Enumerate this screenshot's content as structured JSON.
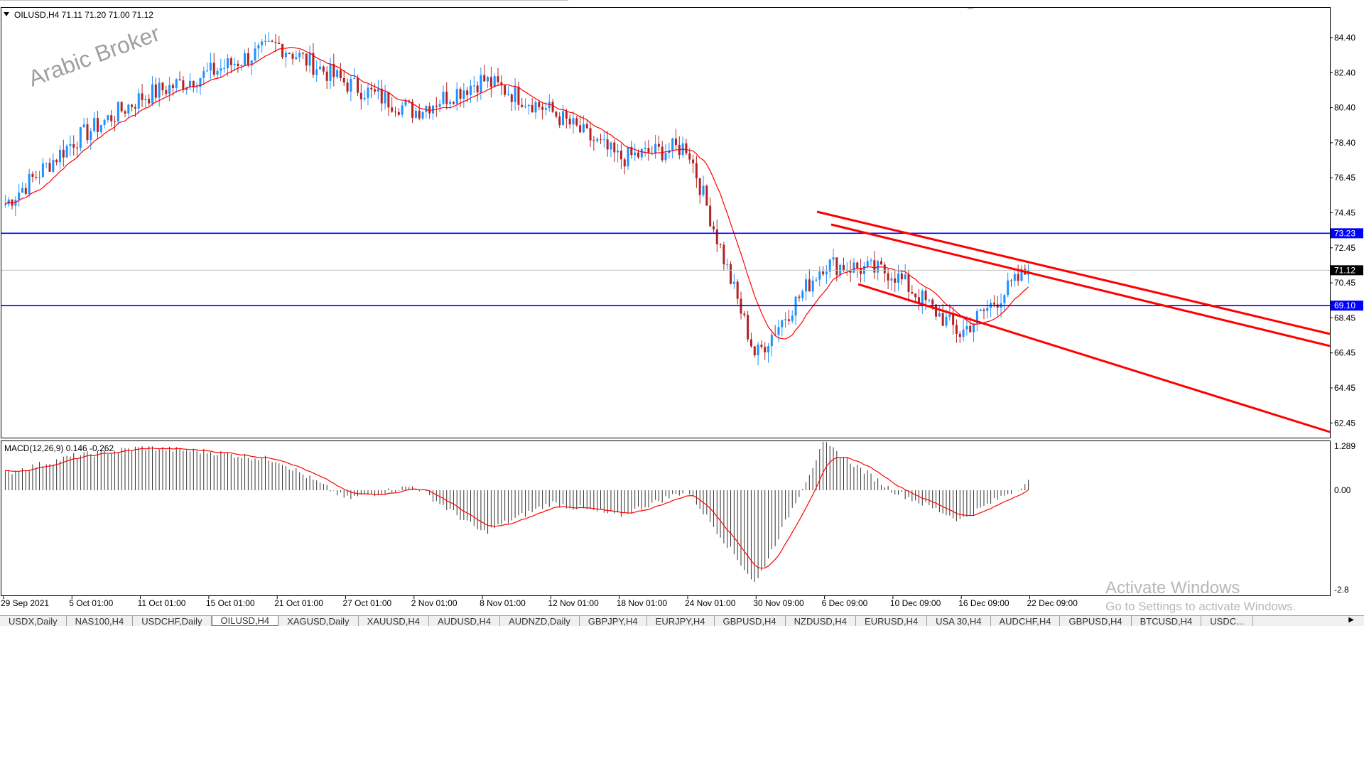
{
  "chart": {
    "header": "OILUSD,H4  71.11 71.20 71.00 71.12",
    "watermark": "Arabic Broker",
    "price_axis": [
      "84.40",
      "82.40",
      "80.40",
      "78.40",
      "76.45",
      "74.45",
      "72.45",
      "70.45",
      "68.45",
      "66.45",
      "64.45",
      "62.45"
    ],
    "hlines": [
      {
        "price": 73.23,
        "label": "73.23",
        "color": "#0000ff"
      },
      {
        "price": 69.1,
        "label": "69.10",
        "color": "#0000ff"
      }
    ],
    "current_price": {
      "price": 71.12,
      "label": "71.12"
    },
    "time_axis": [
      "29 Sep 2021",
      "5 Oct 01:00",
      "11 Oct 01:00",
      "15 Oct 01:00",
      "21 Oct 01:00",
      "27 Oct 01:00",
      "2 Nov 01:00",
      "8 Nov 01:00",
      "12 Nov 01:00",
      "18 Nov 01:00",
      "24 Nov 01:00",
      "30 Nov 09:00",
      "6 Dec 09:00",
      "10 Dec 09:00",
      "16 Dec 09:00",
      "22 Dec 09:00"
    ],
    "macd_label": "MACD(12,26,9) 0.146 -0.262",
    "macd_axis": [
      "1.289",
      "0.00",
      "-2.8"
    ],
    "colors": {
      "bull": "#1e90ff",
      "bear": "#b22222",
      "ma": "#ff0000",
      "trend": "#ff0000",
      "level": "#0000ff"
    }
  },
  "chart_data": {
    "type": "candlestick",
    "symbol": "OILUSD",
    "timeframe": "H4",
    "close_path": [
      [
        "29 Sep 2021",
        74.9
      ],
      [
        "5 Oct 01:00",
        78.5
      ],
      [
        "11 Oct 01:00",
        81.0
      ],
      [
        "15 Oct 01:00",
        82.4
      ],
      [
        "21 Oct 01:00",
        84.0
      ],
      [
        "27 Oct 01:00",
        81.8
      ],
      [
        "2 Nov 01:00",
        80.2
      ],
      [
        "8 Nov 01:00",
        82.0
      ],
      [
        "12 Nov 01:00",
        80.2
      ],
      [
        "18 Nov 01:00",
        77.5
      ],
      [
        "24 Nov 01:00",
        78.2
      ],
      [
        "30 Nov 09:00",
        66.2
      ],
      [
        "6 Dec 09:00",
        71.5
      ],
      [
        "10 Dec 09:00",
        71.0
      ],
      [
        "16 Dec 09:00",
        67.5
      ],
      [
        "22 Dec 09:00",
        71.12
      ]
    ],
    "ylim": [
      61.5,
      86.0
    ],
    "macd_hist": [
      0.4,
      0.8,
      1.0,
      0.9,
      0.7,
      -0.2,
      0.1,
      -1.0,
      -0.3,
      -0.6,
      0.0,
      -2.2,
      1.1,
      0.0,
      -0.7,
      0.2
    ]
  },
  "tabs": [
    "USDX,Daily",
    "NAS100,H4",
    "USDCHF,Daily",
    "OILUSD,H4",
    "XAGUSD,Daily",
    "XAUUSD,H4",
    "AUDUSD,H4",
    "AUDNZD,Daily",
    "GBPJPY,H4",
    "EURJPY,H4",
    "GBPUSD,H4",
    "NZDUSD,H4",
    "EURUSD,H4",
    "USA 30,H4",
    "AUDCHF,H4",
    "GBPUSD,H4",
    "BTCUSD,H4",
    "USDC..."
  ],
  "active_tab": 3,
  "tab_scroll_icon": "triangle-right-icon",
  "windows_watermark": {
    "line1": "Activate Windows",
    "line2": "Go to Settings to activate Windows."
  }
}
